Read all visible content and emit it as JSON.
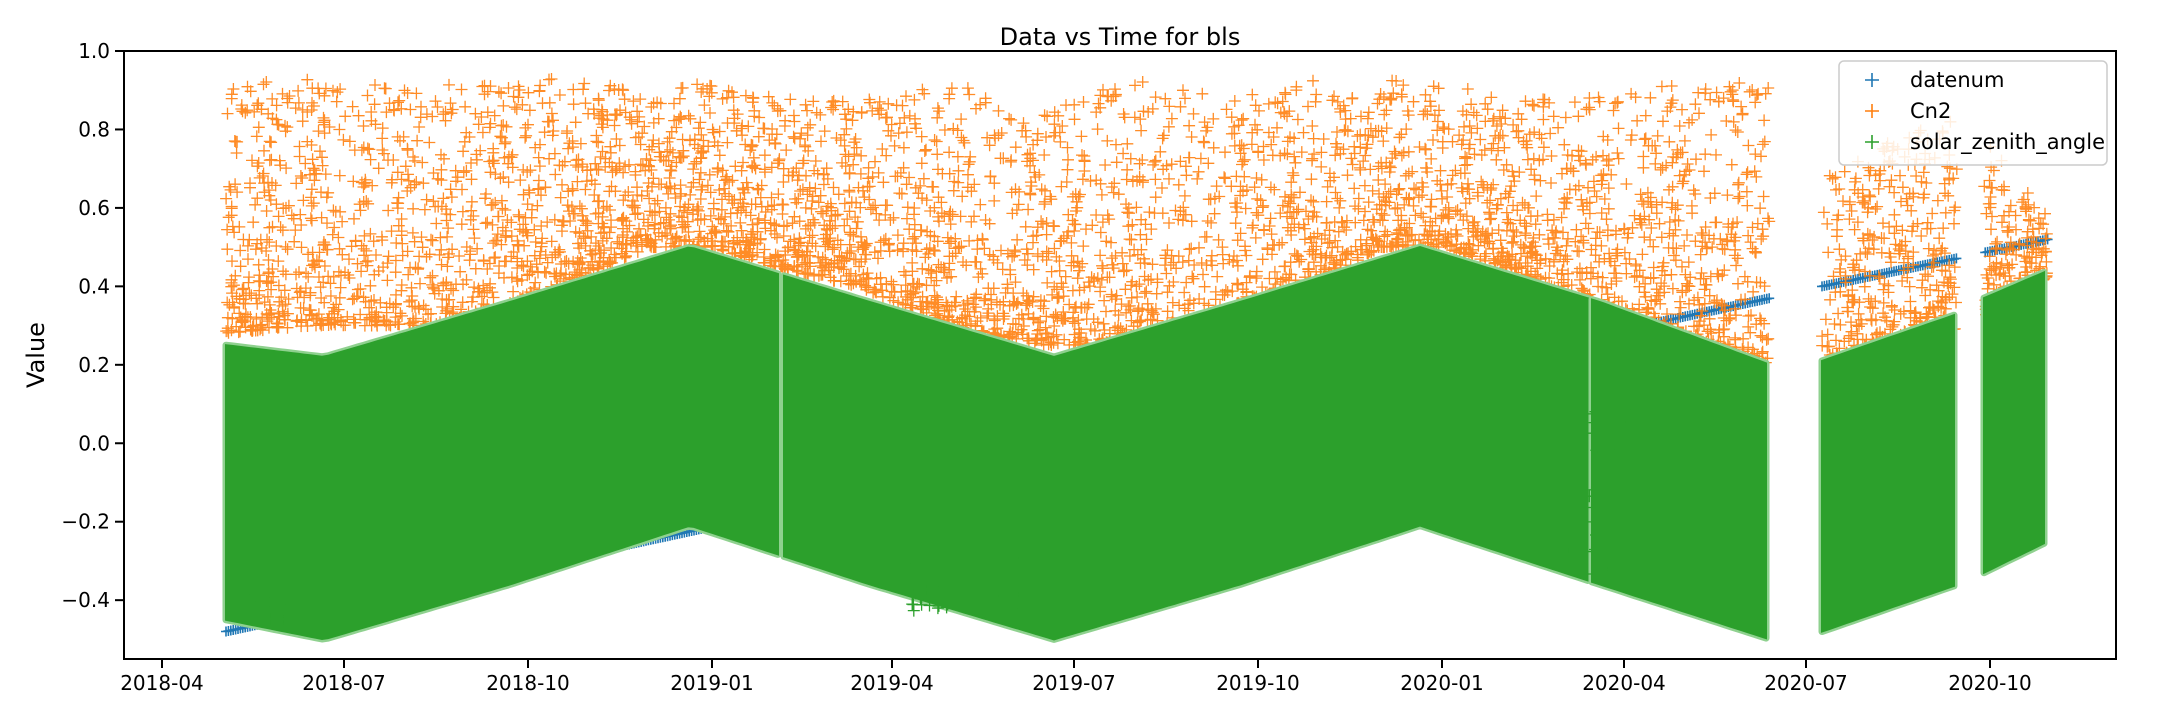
{
  "chart_data": {
    "type": "scatter",
    "title": "Data vs Time for bls",
    "xlabel": "",
    "ylabel": "Value",
    "ylim": [
      -0.55,
      1.0
    ],
    "xlim": [
      "2018-03-13",
      "2020-12-03"
    ],
    "yticks": [
      "1.0",
      "0.8",
      "0.6",
      "0.4",
      "0.2",
      "0.0",
      "−0.2",
      "−0.4"
    ],
    "ytick_values": [
      1.0,
      0.8,
      0.6,
      0.4,
      0.2,
      0.0,
      -0.2,
      -0.4
    ],
    "xticks": [
      "2018-04",
      "2018-07",
      "2018-10",
      "2019-01",
      "2019-04",
      "2019-07",
      "2019-10",
      "2020-01",
      "2020-04",
      "2020-07",
      "2020-10"
    ],
    "xtick_dates": [
      "2018-04-01",
      "2018-07-01",
      "2018-10-01",
      "2019-01-01",
      "2019-04-01",
      "2019-07-01",
      "2019-10-01",
      "2020-01-01",
      "2020-04-01",
      "2020-07-01",
      "2020-10-01"
    ],
    "grid": false,
    "marker": "+",
    "legend_position": "top-right",
    "series": [
      {
        "name": "datenum",
        "color": "#1f77b4",
        "description": "linear increase with time",
        "x": [
          "2018-05-03",
          "2020-06-13",
          "2020-07-09",
          "2020-10-30"
        ],
        "y": [
          -0.48,
          0.37,
          0.4,
          0.52
        ]
      },
      {
        "name": "Cn2",
        "color": "#ff7f0e",
        "description": "scattered positive values, mostly 0.2 to 0.93",
        "x": [
          "2018-05-03",
          "2018-06-15",
          "2018-08-01",
          "2018-09-15",
          "2018-10-15",
          "2018-12-01",
          "2019-01-01",
          "2019-02-01",
          "2019-03-15",
          "2019-05-01",
          "2019-06-15",
          "2019-08-01",
          "2019-09-15",
          "2019-11-01",
          "2019-12-01",
          "2020-01-01",
          "2020-02-01",
          "2020-03-10",
          "2020-04-15",
          "2020-06-13",
          "2020-07-09",
          "2020-08-15",
          "2020-09-20",
          "2020-10-30"
        ],
        "y_min": [
          0.28,
          0.3,
          0.3,
          0.3,
          0.4,
          0.5,
          0.5,
          0.45,
          0.4,
          0.3,
          0.25,
          0.25,
          0.3,
          0.4,
          0.5,
          0.5,
          0.45,
          0.35,
          0.3,
          0.2,
          0.22,
          0.25,
          0.3,
          0.42
        ],
        "y_max": [
          0.92,
          0.93,
          0.92,
          0.92,
          0.93,
          0.9,
          0.92,
          0.88,
          0.88,
          0.92,
          0.85,
          0.93,
          0.88,
          0.93,
          0.93,
          0.92,
          0.88,
          0.88,
          0.92,
          0.92,
          0.7,
          0.78,
          0.84,
          0.58
        ]
      },
      {
        "name": "solar_zenith_angle",
        "color": "#2ca02c",
        "description": "dense seasonal band",
        "x": [
          "2018-05-03",
          "2018-06-21",
          "2018-09-22",
          "2018-12-21",
          "2019-03-21",
          "2019-06-21",
          "2019-09-22",
          "2019-12-21",
          "2020-03-20",
          "2020-06-13",
          "2020-07-09",
          "2020-09-15",
          "2020-09-28",
          "2020-10-30"
        ],
        "y_top": [
          0.25,
          0.22,
          0.36,
          0.5,
          0.36,
          0.22,
          0.36,
          0.5,
          0.36,
          0.2,
          0.21,
          0.33,
          0.37,
          0.44
        ],
        "y_bottom": [
          -0.45,
          -0.5,
          -0.36,
          -0.21,
          -0.36,
          -0.5,
          -0.36,
          -0.21,
          -0.36,
          -0.5,
          -0.48,
          -0.36,
          -0.33,
          -0.25
        ]
      }
    ]
  }
}
